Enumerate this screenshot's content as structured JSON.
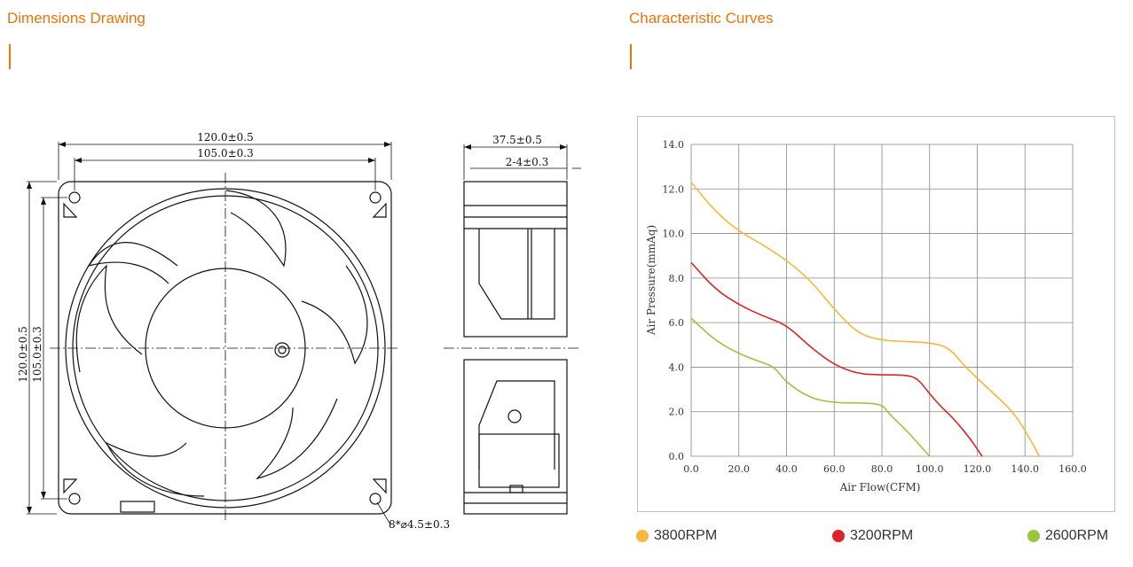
{
  "sections": {
    "left_title": "Dimensions Drawing",
    "right_title": "Characteristic Curves"
  },
  "drawing": {
    "dims": {
      "outer_width": "120.0±0.5",
      "hole_spacing_width": "105.0±0.3",
      "outer_height": "120.0±0.5",
      "hole_spacing_height": "105.0±0.3",
      "depth": "37.5±0.5",
      "flange": "2-4±0.3",
      "holes": "8*⌀4.5±0.3"
    }
  },
  "chart_data": {
    "type": "line",
    "xlabel": "Air Flow(CFM)",
    "ylabel": "Air Pressure(mmAq)",
    "xlim": [
      0,
      160
    ],
    "ylim": [
      0,
      14
    ],
    "xticks": [
      "0.0",
      "20.0",
      "40.0",
      "60.0",
      "80.0",
      "100.0",
      "120.0",
      "140.0",
      "160.0"
    ],
    "yticks": [
      "0.0",
      "2.0",
      "4.0",
      "6.0",
      "8.0",
      "10.0",
      "12.0",
      "14.0"
    ],
    "grid": true,
    "series": [
      {
        "name": "3800RPM",
        "color": "#f5b83d",
        "x": [
          0,
          10,
          20,
          30,
          40,
          50,
          60,
          70,
          80,
          90,
          100,
          108,
          115,
          125,
          135,
          141,
          146
        ],
        "y": [
          12.3,
          11.0,
          10.1,
          9.5,
          8.8,
          7.9,
          6.6,
          5.5,
          5.2,
          5.15,
          5.1,
          4.9,
          4.0,
          3.0,
          2.0,
          1.0,
          0.0
        ]
      },
      {
        "name": "3200RPM",
        "color": "#d9262a",
        "x": [
          0,
          10,
          20,
          30,
          40,
          50,
          60,
          70,
          80,
          90,
          95,
          100,
          105,
          110,
          117,
          122
        ],
        "y": [
          8.7,
          7.5,
          6.8,
          6.3,
          5.9,
          4.9,
          4.1,
          3.7,
          3.65,
          3.65,
          3.5,
          2.8,
          2.2,
          1.7,
          0.8,
          0.0
        ]
      },
      {
        "name": "2600RPM",
        "color": "#9bc53d",
        "x": [
          0,
          10,
          20,
          30,
          35,
          40,
          50,
          60,
          70,
          80,
          83,
          90,
          100
        ],
        "y": [
          6.2,
          5.2,
          4.6,
          4.2,
          4.0,
          3.3,
          2.6,
          2.4,
          2.4,
          2.35,
          1.9,
          1.2,
          0.0
        ]
      }
    ]
  },
  "legend": [
    {
      "label": "3800RPM",
      "color": "#f5b83d"
    },
    {
      "label": "3200RPM",
      "color": "#d9262a"
    },
    {
      "label": "2600RPM",
      "color": "#9bc53d"
    }
  ]
}
